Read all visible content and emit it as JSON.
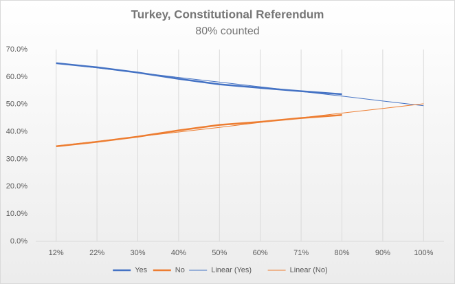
{
  "chart_data": {
    "type": "line",
    "title": "Turkey, Constitutional Referendum",
    "subtitle": "80% counted",
    "categories": [
      "12%",
      "22%",
      "30%",
      "40%",
      "50%",
      "60%",
      "71%",
      "80%",
      "90%",
      "100%"
    ],
    "series": [
      {
        "name": "Yes",
        "color": "#4472c4",
        "width": 2.5,
        "values": [
          65.0,
          63.5,
          61.6,
          59.3,
          57.3,
          56.0,
          54.8,
          53.7,
          null,
          null
        ]
      },
      {
        "name": "No",
        "color": "#ed7d31",
        "width": 2.5,
        "values": [
          34.7,
          36.3,
          38.2,
          40.5,
          42.5,
          43.6,
          45.0,
          46.1,
          null,
          null
        ]
      },
      {
        "name": "Linear (Yes)",
        "color": "#4472c4",
        "width": 1,
        "values": [
          65.0,
          63.3,
          61.6,
          59.8,
          58.1,
          56.4,
          54.7,
          53.0,
          51.2,
          49.5
        ]
      },
      {
        "name": "Linear (No)",
        "color": "#ed7d31",
        "width": 1,
        "values": [
          34.8,
          36.5,
          38.2,
          39.9,
          41.6,
          43.4,
          45.1,
          46.8,
          48.5,
          50.2
        ]
      }
    ],
    "ylim": [
      0,
      70
    ],
    "yticks": [
      {
        "value": 0,
        "label": "0.0%"
      },
      {
        "value": 10,
        "label": "10.0%"
      },
      {
        "value": 20,
        "label": "20.0%"
      },
      {
        "value": 30,
        "label": "30.0%"
      },
      {
        "value": 40,
        "label": "40.0%"
      },
      {
        "value": 50,
        "label": "50.0%"
      },
      {
        "value": 60,
        "label": "60.0%"
      },
      {
        "value": 70,
        "label": "70.0%"
      }
    ],
    "grid": "x",
    "legend": "bottom"
  }
}
